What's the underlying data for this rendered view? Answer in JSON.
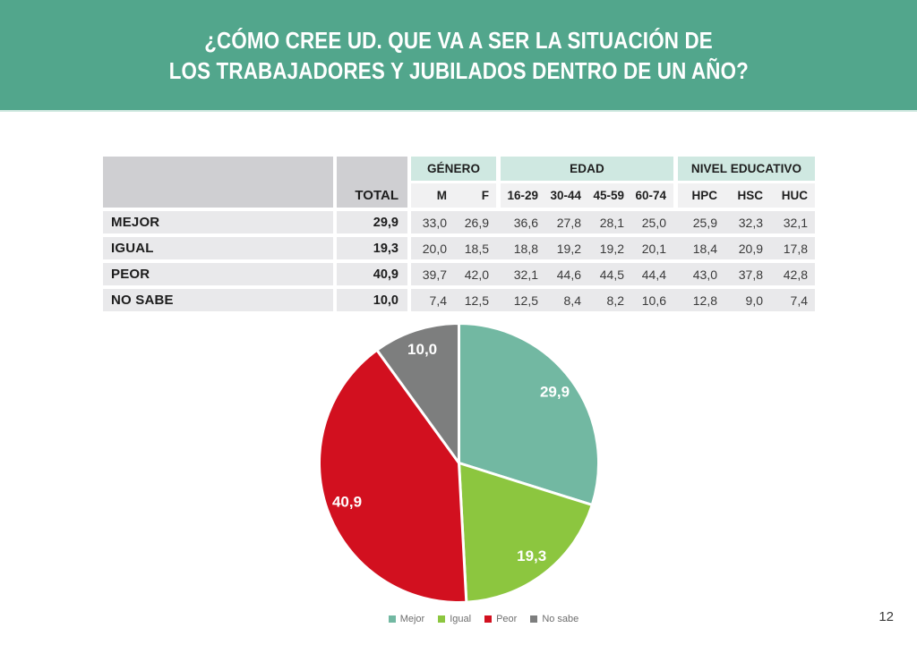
{
  "header": {
    "title_line1": "¿CÓMO CREE UD. QUE VA A SER LA SITUACIÓN DE",
    "title_line2": "LOS TRABAJADORES Y JUBILADOS DENTRO DE UN AÑO?"
  },
  "table": {
    "total_label": "TOTAL",
    "groups": [
      {
        "label": "GÉNERO",
        "cols": 2
      },
      {
        "label": "EDAD",
        "cols": 4
      },
      {
        "label": "NIVEL EDUCATIVO",
        "cols": 3
      }
    ],
    "columns": [
      "M",
      "F",
      "16-29",
      "30-44",
      "45-59",
      "60-74",
      "HPC",
      "HSC",
      "HUC"
    ],
    "rows": [
      {
        "label": "MEJOR",
        "total": "29,9",
        "values": [
          "33,0",
          "26,9",
          "36,6",
          "27,8",
          "28,1",
          "25,0",
          "25,9",
          "32,3",
          "32,1"
        ]
      },
      {
        "label": "IGUAL",
        "total": "19,3",
        "values": [
          "20,0",
          "18,5",
          "18,8",
          "19,2",
          "19,2",
          "20,1",
          "18,4",
          "20,9",
          "17,8"
        ]
      },
      {
        "label": "PEOR",
        "total": "40,9",
        "values": [
          "39,7",
          "42,0",
          "32,1",
          "44,6",
          "44,5",
          "44,4",
          "43,0",
          "37,8",
          "42,8"
        ]
      },
      {
        "label": "NO SABE",
        "total": "10,0",
        "values": [
          "7,4",
          "12,5",
          "12,5",
          "8,4",
          "8,2",
          "10,6",
          "12,8",
          "9,0",
          "7,4"
        ]
      }
    ]
  },
  "chart_data": {
    "type": "pie",
    "title": "¿Cómo cree Ud. que va a ser la situación de los trabajadores y jubilados dentro de un año? (Total)",
    "categories": [
      "Mejor",
      "Igual",
      "Peor",
      "No sabe"
    ],
    "values": [
      29.9,
      19.3,
      40.9,
      10.0
    ],
    "value_labels": [
      "29,9",
      "19,3",
      "40,9",
      "10,0"
    ],
    "colors": [
      "#72b8a2",
      "#8cc63f",
      "#d2101f",
      "#7d7e7e"
    ],
    "start_angle_deg": 0,
    "direction": "clockwise",
    "legend_position": "bottom"
  },
  "colors": {
    "banner_background": "#52a68c",
    "header_gray": "#cfcfd2",
    "header_mint": "#cfe8e1",
    "row_background": "#e9e9eb",
    "slice_separator": "#ffffff"
  },
  "footer": {
    "page_number": "12"
  }
}
